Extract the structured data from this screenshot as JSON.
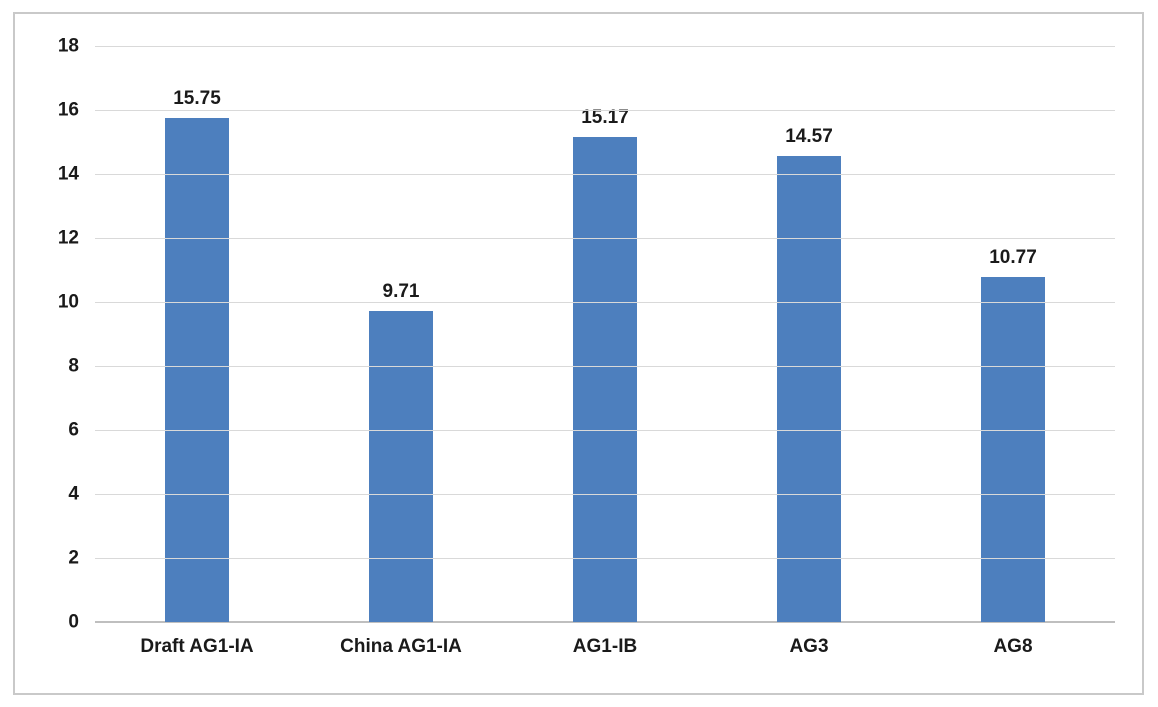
{
  "chart_data": {
    "type": "bar",
    "categories": [
      "Draft AG1-IA",
      "China AG1-IA",
      "AG1-IB",
      "AG3",
      "AG8"
    ],
    "values": [
      15.75,
      9.71,
      15.17,
      14.57,
      10.77
    ],
    "value_labels": [
      "15.75",
      "9.71",
      "15.17",
      "14.57",
      "10.77"
    ],
    "title": "",
    "xlabel": "",
    "ylabel": "",
    "ylim": [
      0,
      18
    ],
    "yticks": [
      0,
      2,
      4,
      6,
      8,
      10,
      12,
      14,
      16,
      18
    ],
    "grid": true,
    "legend_position": "none",
    "bar_color": "#4d7fbe",
    "gridline_color": "#d9d9d9",
    "axis_text_color": "#1a1a1a",
    "frame_border_color": "#c9c9c9"
  }
}
